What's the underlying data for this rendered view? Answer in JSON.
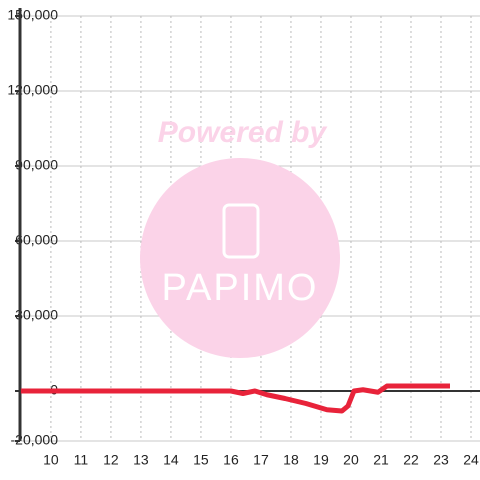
{
  "chart_data": {
    "type": "line",
    "x": [
      9.0,
      16.0,
      16.4,
      16.8,
      17.2,
      17.8,
      18.5,
      19.2,
      19.7,
      19.9,
      20.1,
      20.4,
      20.9,
      21.2,
      23.3
    ],
    "series": [
      {
        "color": "#e8233a",
        "values": [
          0,
          0,
          -1000,
          0,
          -1500,
          -3000,
          -5000,
          -7500,
          -8000,
          -6000,
          0,
          500,
          -500,
          2000,
          2000
        ]
      }
    ],
    "xlim": [
      8.97,
      24.3
    ],
    "xticks": [
      10,
      11,
      12,
      13,
      14,
      15,
      16,
      17,
      18,
      19,
      20,
      21,
      22,
      23,
      24
    ],
    "ylim": [
      -20000,
      150000
    ],
    "yticks": [
      {
        "value": -20000,
        "label": "-20,000"
      },
      {
        "value": 0,
        "label": "0"
      },
      {
        "value": 30000,
        "label": "30,000"
      },
      {
        "value": 60000,
        "label": "60,000"
      },
      {
        "value": 90000,
        "label": "90,000"
      },
      {
        "value": 120000,
        "label": "120,000"
      },
      {
        "value": 150000,
        "label": "150,000"
      }
    ],
    "grid": true,
    "watermark": {
      "top": "Powered by",
      "brand": "PAPIMO"
    }
  }
}
